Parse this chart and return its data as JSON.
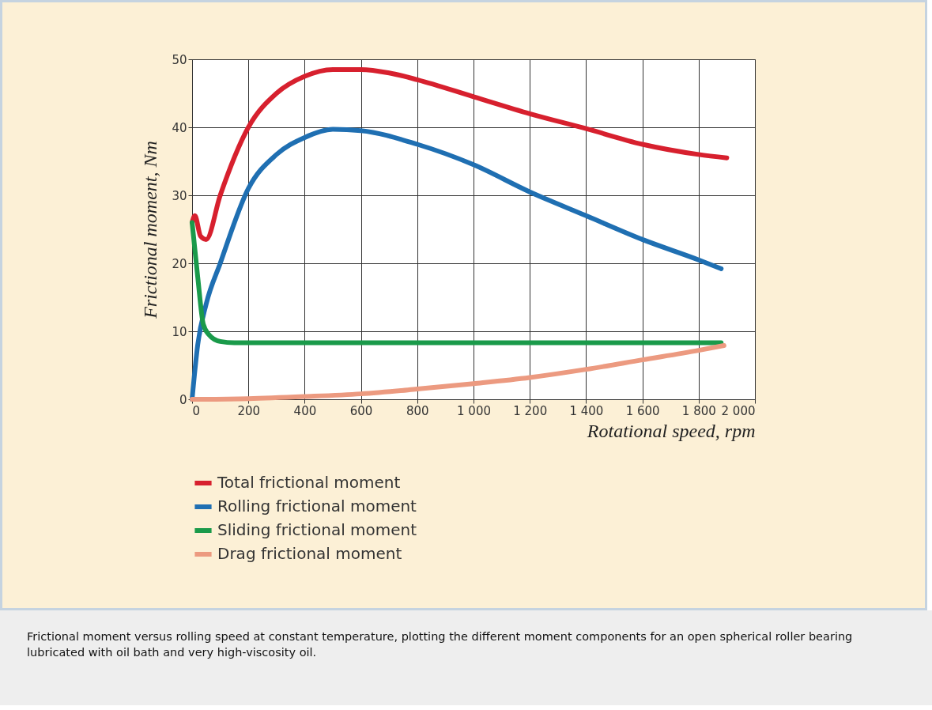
{
  "chart_data": {
    "type": "line",
    "xlabel": "Rotational speed, rpm",
    "ylabel": "Frictional moment, Nm",
    "xlim": [
      0,
      2000
    ],
    "ylim": [
      0,
      50
    ],
    "xticks": [
      0,
      200,
      400,
      600,
      800,
      {
        "value": 1000,
        "label": "1 000"
      },
      {
        "value": 1200,
        "label": "1 200"
      },
      {
        "value": 1400,
        "label": "1 400"
      },
      {
        "value": 1600,
        "label": "1 600"
      },
      {
        "value": 1800,
        "label": "1 800"
      },
      {
        "value": 2000,
        "label": "2 000"
      }
    ],
    "yticks": [
      0,
      10,
      20,
      30,
      40,
      50
    ],
    "grid": true,
    "legend": "bottom",
    "series": [
      {
        "name": "Total frictional moment",
        "color": "#d7202e",
        "x": [
          0,
          10,
          30,
          50,
          100,
          200,
          300,
          400,
          500,
          600,
          700,
          800,
          1000,
          1200,
          1400,
          1600,
          1800,
          1900
        ],
        "values": [
          26,
          27,
          24,
          23.5,
          30,
          40,
          45,
          47.5,
          48.5,
          48.5,
          48,
          47,
          44.5,
          42,
          39.8,
          37.5,
          36,
          35.5
        ]
      },
      {
        "name": "Rolling frictional moment",
        "color": "#1f6fb2",
        "x": [
          0,
          20,
          50,
          100,
          200,
          300,
          400,
          500,
          600,
          800,
          1000,
          1200,
          1400,
          1600,
          1800,
          1880
        ],
        "values": [
          0,
          8,
          14,
          20,
          31,
          36,
          38.5,
          39.7,
          39.5,
          37.5,
          34.5,
          30.5,
          27,
          23.5,
          20.5,
          19.2
        ]
      },
      {
        "name": "Sliding frictional moment",
        "color": "#1a9a4a",
        "x": [
          0,
          20,
          40,
          60,
          100,
          150,
          400,
          800,
          1200,
          1600,
          1880
        ],
        "values": [
          26,
          18,
          11,
          9.5,
          8.5,
          8.3,
          8.3,
          8.3,
          8.3,
          8.3,
          8.3
        ]
      },
      {
        "name": "Drag frictional moment",
        "color": "#ec9a80",
        "x": [
          0,
          200,
          400,
          600,
          800,
          1000,
          1200,
          1400,
          1600,
          1800,
          1890
        ],
        "values": [
          0,
          0.1,
          0.4,
          0.8,
          1.5,
          2.3,
          3.2,
          4.4,
          5.8,
          7.2,
          7.9
        ]
      }
    ],
    "annotations": [
      "Frictional moment versus rolling speed at constant temperature, plotting the different moment components for an open spherical roller bearing lubricated with oil bath and very high-viscosity oil."
    ]
  }
}
